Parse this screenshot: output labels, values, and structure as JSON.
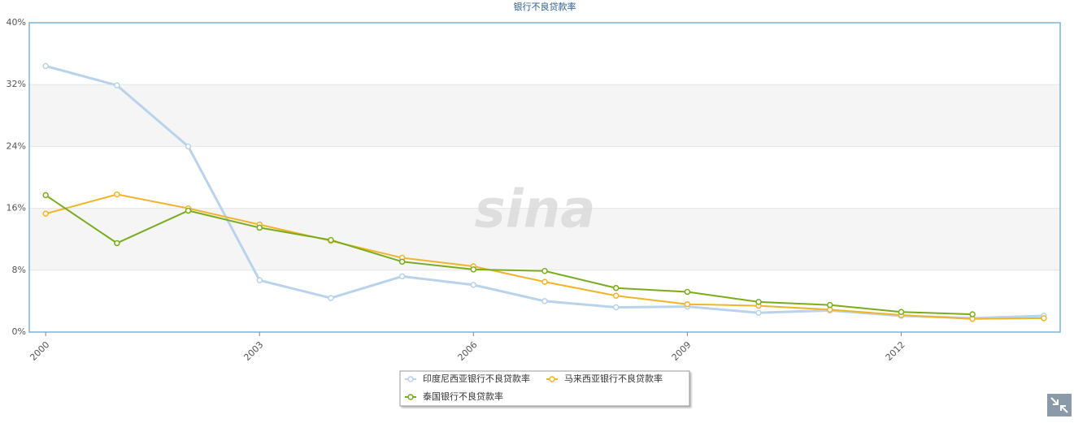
{
  "chart_data": {
    "type": "line",
    "title": "银行不良贷款率",
    "watermark": "sina",
    "x": [
      2000,
      2001,
      2002,
      2003,
      2004,
      2005,
      2006,
      2007,
      2008,
      2009,
      2010,
      2011,
      2012,
      2013,
      2014
    ],
    "xlim": [
      1999.77,
      2014.23
    ],
    "xticks": [
      2000,
      2003,
      2006,
      2009,
      2012
    ],
    "ylim": [
      0,
      40
    ],
    "yticks": [
      {
        "value": 0,
        "label": "0%"
      },
      {
        "value": 8,
        "label": "8%"
      },
      {
        "value": 16,
        "label": "16%"
      },
      {
        "value": 24,
        "label": "24%"
      },
      {
        "value": 32,
        "label": "32%"
      },
      {
        "value": 40,
        "label": "40%"
      }
    ],
    "grid": true,
    "legend": "bottom",
    "series": [
      {
        "name": "印度尼西亚银行不良贷款率",
        "color": "#b8d3ea",
        "values": [
          34.4,
          31.9,
          24.0,
          6.7,
          4.4,
          7.2,
          6.1,
          4.0,
          3.2,
          3.3,
          2.5,
          2.8,
          2.1,
          1.8,
          2.1
        ]
      },
      {
        "name": "马来西亚银行不良贷款率",
        "color": "#f0b429",
        "values": [
          15.3,
          17.8,
          16.0,
          13.9,
          11.8,
          9.6,
          8.5,
          6.5,
          4.7,
          3.6,
          3.4,
          2.9,
          2.2,
          1.7,
          1.8
        ]
      },
      {
        "name": "泰国银行不良贷款率",
        "color": "#7aac1f",
        "values": [
          17.7,
          11.5,
          15.7,
          13.5,
          11.9,
          9.1,
          8.1,
          7.9,
          5.7,
          5.2,
          3.9,
          3.5,
          2.6,
          2.3,
          null
        ]
      }
    ]
  }
}
